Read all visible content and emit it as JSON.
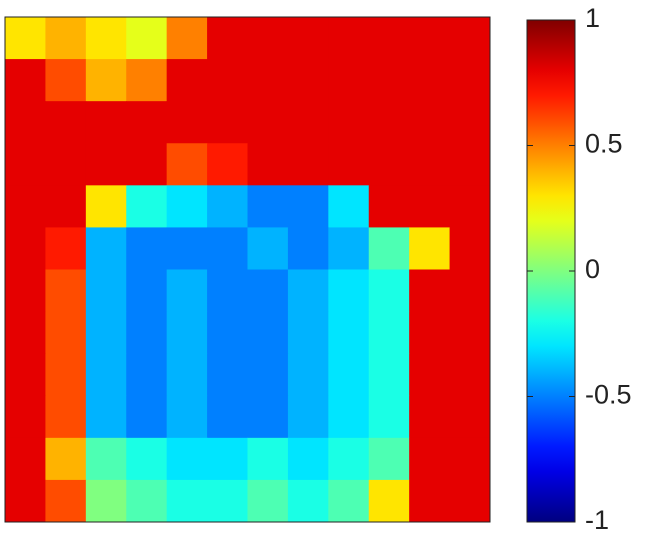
{
  "chart_data": {
    "type": "heatmap",
    "z": [
      [
        0.3,
        0.4,
        0.3,
        0.2,
        0.5,
        0.8,
        0.8,
        0.8,
        0.8,
        0.8,
        0.8,
        0.8
      ],
      [
        0.8,
        0.6,
        0.4,
        0.5,
        0.8,
        0.8,
        0.8,
        0.8,
        0.8,
        0.8,
        0.8,
        0.8
      ],
      [
        0.8,
        0.8,
        0.8,
        0.8,
        0.8,
        0.8,
        0.8,
        0.8,
        0.8,
        0.8,
        0.8,
        0.8
      ],
      [
        0.8,
        0.8,
        0.8,
        0.8,
        0.6,
        0.7,
        0.8,
        0.8,
        0.8,
        0.8,
        0.8,
        0.8
      ],
      [
        0.8,
        0.8,
        0.3,
        -0.2,
        -0.3,
        -0.4,
        -0.5,
        -0.5,
        -0.3,
        0.8,
        0.8,
        0.8
      ],
      [
        0.8,
        0.7,
        -0.4,
        -0.5,
        -0.5,
        -0.5,
        -0.4,
        -0.5,
        -0.4,
        -0.1,
        0.3,
        0.8
      ],
      [
        0.8,
        0.6,
        -0.4,
        -0.5,
        -0.4,
        -0.5,
        -0.5,
        -0.4,
        -0.3,
        -0.2,
        0.8,
        0.8
      ],
      [
        0.8,
        0.6,
        -0.4,
        -0.5,
        -0.4,
        -0.5,
        -0.5,
        -0.4,
        -0.3,
        -0.2,
        0.8,
        0.8
      ],
      [
        0.8,
        0.6,
        -0.4,
        -0.5,
        -0.4,
        -0.5,
        -0.5,
        -0.4,
        -0.3,
        -0.2,
        0.8,
        0.8
      ],
      [
        0.8,
        0.6,
        -0.4,
        -0.5,
        -0.4,
        -0.5,
        -0.5,
        -0.4,
        -0.3,
        -0.2,
        0.8,
        0.8
      ],
      [
        0.8,
        0.4,
        -0.1,
        -0.2,
        -0.3,
        -0.3,
        -0.2,
        -0.3,
        -0.2,
        -0.1,
        0.8,
        0.8
      ],
      [
        0.8,
        0.6,
        0.0,
        -0.1,
        -0.2,
        -0.2,
        -0.1,
        -0.2,
        -0.1,
        0.3,
        0.8,
        0.8
      ]
    ],
    "colormap": "jet",
    "clim": [
      -1,
      1
    ],
    "cticks": [
      -1,
      -0.5,
      0,
      0.5,
      1
    ]
  }
}
